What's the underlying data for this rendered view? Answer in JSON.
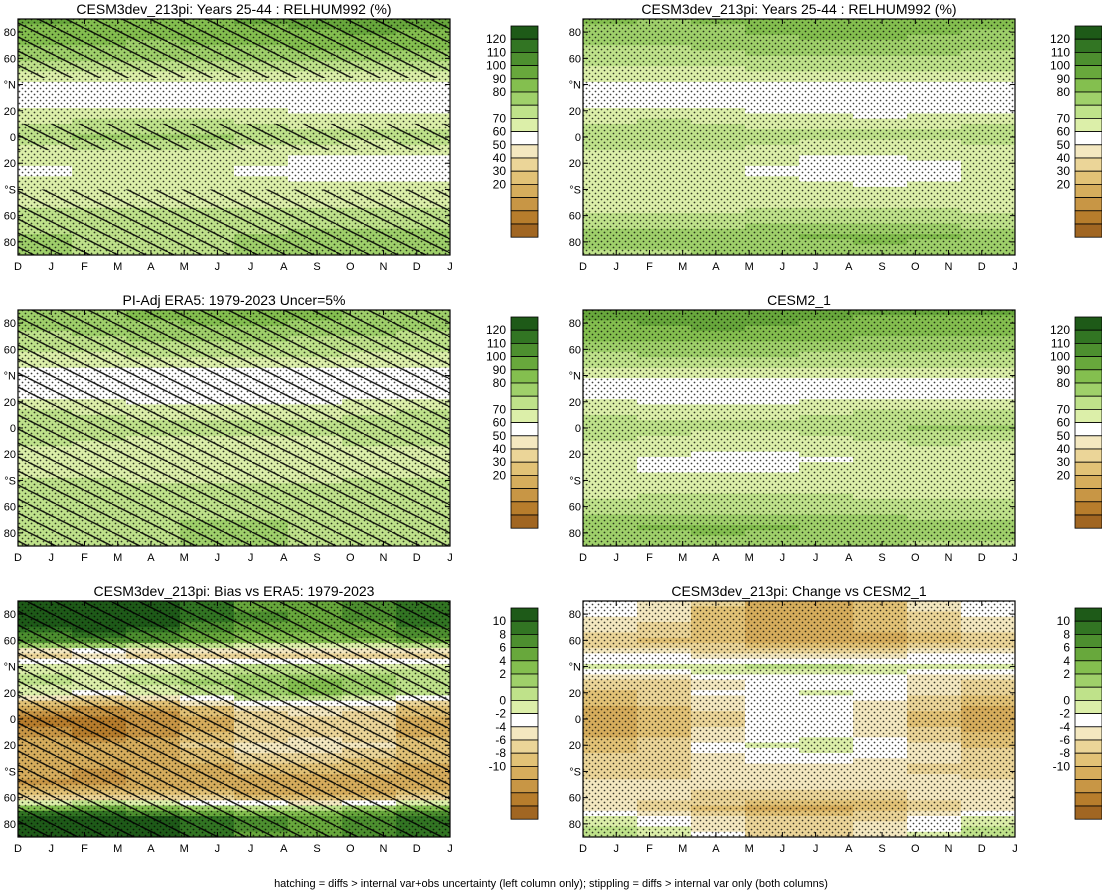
{
  "footnote": "hatching = diffs > internal var+obs uncertainty (left column only); stippling = diffs > internal var only (both columns)",
  "palettes": {
    "abs": [
      "#a16622",
      "#b77d2c",
      "#c89645",
      "#d6ad5c",
      "#e2c276",
      "#ebd598",
      "#f4e8c0",
      "#ffffff",
      "#dcefa9",
      "#bfe28a",
      "#9fd06a",
      "#84bf4f",
      "#68a83c",
      "#4d8f2f",
      "#327523",
      "#1e5a18"
    ],
    "diff": [
      "#a16622",
      "#b77d2c",
      "#c89645",
      "#d6ad5c",
      "#e2c276",
      "#ebd598",
      "#f4e8c0",
      "#ffffff",
      "#dcefa9",
      "#bfe28a",
      "#9fd06a",
      "#84bf4f",
      "#68a83c",
      "#4d8f2f",
      "#327523",
      "#1e5a18"
    ]
  },
  "chart_data": [
    {
      "id": "p1",
      "type": "heatmap",
      "title": "CESM3dev_213pi: Years 25-44 : RELHUM992 (%)",
      "x_ticks": [
        "D",
        "J",
        "F",
        "M",
        "A",
        "M",
        "J",
        "J",
        "A",
        "S",
        "O",
        "N",
        "D",
        "J"
      ],
      "y_ticks": [
        "80",
        "60",
        "°N",
        "20",
        "0",
        "20",
        "°S",
        "60",
        "80"
      ],
      "colorbar_labels": [
        "120",
        "110",
        "100",
        "90",
        "80",
        "70",
        "60",
        "50",
        "40",
        "30",
        "20"
      ],
      "palette": "abs",
      "vmin": 10,
      "vmax": 130,
      "profile_lat": [
        90,
        75,
        60,
        45,
        35,
        25,
        15,
        5,
        0,
        -5,
        -15,
        -25,
        -35,
        -45,
        -55,
        -65,
        -75,
        -90
      ],
      "profile_values": [
        102,
        96,
        87,
        73,
        63,
        66,
        74,
        81,
        83,
        79,
        72,
        69,
        71,
        74,
        78,
        82,
        85,
        86
      ],
      "hatch": [
        [
          -90,
          -40
        ],
        [
          -10,
          10
        ],
        [
          45,
          90
        ]
      ],
      "stipple": [
        [
          -90,
          90
        ]
      ]
    },
    {
      "id": "p2",
      "type": "heatmap",
      "title": "CESM3dev_213pi: Years 25-44 : RELHUM992 (%)",
      "x_ticks": [
        "D",
        "J",
        "F",
        "M",
        "A",
        "M",
        "J",
        "J",
        "A",
        "S",
        "O",
        "N",
        "D",
        "J"
      ],
      "y_ticks": [
        "80",
        "60",
        "°N",
        "20",
        "0",
        "20",
        "°S",
        "60",
        "80"
      ],
      "colorbar_labels": [
        "120",
        "110",
        "100",
        "90",
        "80",
        "70",
        "60",
        "50",
        "40",
        "30",
        "20"
      ],
      "palette": "abs",
      "vmin": 10,
      "vmax": 130,
      "profile_lat": [
        90,
        75,
        60,
        45,
        35,
        25,
        15,
        5,
        0,
        -5,
        -15,
        -25,
        -35,
        -45,
        -55,
        -65,
        -75,
        -90
      ],
      "profile_values": [
        96,
        90,
        83,
        73,
        65,
        66,
        73,
        80,
        82,
        78,
        72,
        70,
        71,
        73,
        77,
        82,
        92,
        86
      ],
      "hatch": [],
      "stipple": [
        [
          -90,
          90
        ]
      ]
    },
    {
      "id": "p3",
      "type": "heatmap",
      "title": "PI-Adj ERA5: 1979-2023 Uncer=5%",
      "x_ticks": [
        "D",
        "J",
        "F",
        "M",
        "A",
        "M",
        "J",
        "J",
        "A",
        "S",
        "O",
        "N",
        "D",
        "J"
      ],
      "y_ticks": [
        "80",
        "60",
        "°N",
        "20",
        "0",
        "20",
        "°S",
        "60",
        "80"
      ],
      "colorbar_labels": [
        "120",
        "110",
        "100",
        "90",
        "80",
        "70",
        "60",
        "50",
        "40",
        "30",
        "20"
      ],
      "palette": "abs",
      "vmin": 10,
      "vmax": 130,
      "profile_lat": [
        90,
        75,
        60,
        45,
        35,
        25,
        15,
        5,
        0,
        -5,
        -15,
        -25,
        -35,
        -45,
        -55,
        -65,
        -75,
        -90
      ],
      "profile_values": [
        94,
        88,
        80,
        70,
        66,
        67,
        74,
        80,
        82,
        80,
        75,
        72,
        76,
        79,
        81,
        83,
        84,
        83
      ],
      "hatch": [
        [
          -90,
          90
        ]
      ],
      "stipple": [
        [
          -90,
          90
        ]
      ]
    },
    {
      "id": "p4",
      "type": "heatmap",
      "title": "CESM2_1",
      "x_ticks": [
        "D",
        "J",
        "F",
        "M",
        "A",
        "M",
        "J",
        "J",
        "A",
        "S",
        "O",
        "N",
        "D",
        "J"
      ],
      "y_ticks": [
        "80",
        "60",
        "°N",
        "20",
        "0",
        "20",
        "°S",
        "60",
        "80"
      ],
      "colorbar_labels": [
        "120",
        "110",
        "100",
        "90",
        "80",
        "70",
        "60",
        "50",
        "40",
        "30",
        "20"
      ],
      "palette": "abs",
      "vmin": 10,
      "vmax": 130,
      "profile_lat": [
        90,
        75,
        60,
        45,
        35,
        25,
        15,
        5,
        0,
        -5,
        -15,
        -25,
        -35,
        -45,
        -55,
        -65,
        -75,
        -90
      ],
      "profile_values": [
        104,
        97,
        88,
        76,
        66,
        67,
        74,
        81,
        83,
        79,
        73,
        70,
        71,
        74,
        79,
        84,
        92,
        86
      ],
      "hatch": [],
      "stipple": [
        [
          -90,
          90
        ]
      ]
    },
    {
      "id": "p5",
      "type": "heatmap",
      "title": "CESM3dev_213pi: Bias vs ERA5: 1979-2023",
      "x_ticks": [
        "D",
        "J",
        "F",
        "M",
        "A",
        "M",
        "J",
        "J",
        "A",
        "S",
        "O",
        "N",
        "D",
        "J"
      ],
      "y_ticks": [
        "80",
        "60",
        "°N",
        "20",
        "0",
        "20",
        "°S",
        "60",
        "80"
      ],
      "colorbar_labels": [
        "10",
        "8",
        "6",
        "4",
        "2",
        "0",
        "-2",
        "-4",
        "-6",
        "-8",
        "-10"
      ],
      "palette": "diff",
      "vmin": -11,
      "vmax": 11,
      "profile_lat": [
        90,
        75,
        60,
        50,
        40,
        30,
        20,
        10,
        0,
        -10,
        -20,
        -30,
        -40,
        -50,
        -60,
        -68,
        -75,
        -90
      ],
      "profile_values": [
        9,
        9,
        6,
        -4,
        1,
        3,
        2,
        -4,
        -6,
        -6,
        -4,
        -5,
        -6,
        -7,
        -4,
        4,
        9,
        9
      ],
      "hatch": [
        [
          -90,
          90
        ]
      ],
      "stipple": [
        [
          -90,
          90
        ]
      ]
    },
    {
      "id": "p6",
      "type": "heatmap",
      "title": "CESM3dev_213pi: Change vs CESM2_1",
      "x_ticks": [
        "D",
        "J",
        "F",
        "M",
        "A",
        "M",
        "J",
        "J",
        "A",
        "S",
        "O",
        "N",
        "D",
        "J"
      ],
      "y_ticks": [
        "80",
        "60",
        "°N",
        "20",
        "0",
        "20",
        "°S",
        "60",
        "80"
      ],
      "colorbar_labels": [
        "10",
        "8",
        "6",
        "4",
        "2",
        "0",
        "-2",
        "-4",
        "-6",
        "-8",
        "-10"
      ],
      "palette": "diff",
      "vmin": -11,
      "vmax": 11,
      "profile_lat": [
        90,
        75,
        60,
        50,
        40,
        30,
        20,
        10,
        0,
        -10,
        -20,
        -30,
        -40,
        -50,
        -60,
        -68,
        -75,
        -90
      ],
      "profile_values": [
        -3,
        -4,
        -5,
        -2,
        1,
        -2,
        -2,
        -3,
        -4,
        -3,
        -2,
        -2,
        -3,
        -2,
        -3,
        -4,
        -2,
        0
      ],
      "hatch": [],
      "stipple": [
        [
          -90,
          90
        ]
      ]
    }
  ]
}
